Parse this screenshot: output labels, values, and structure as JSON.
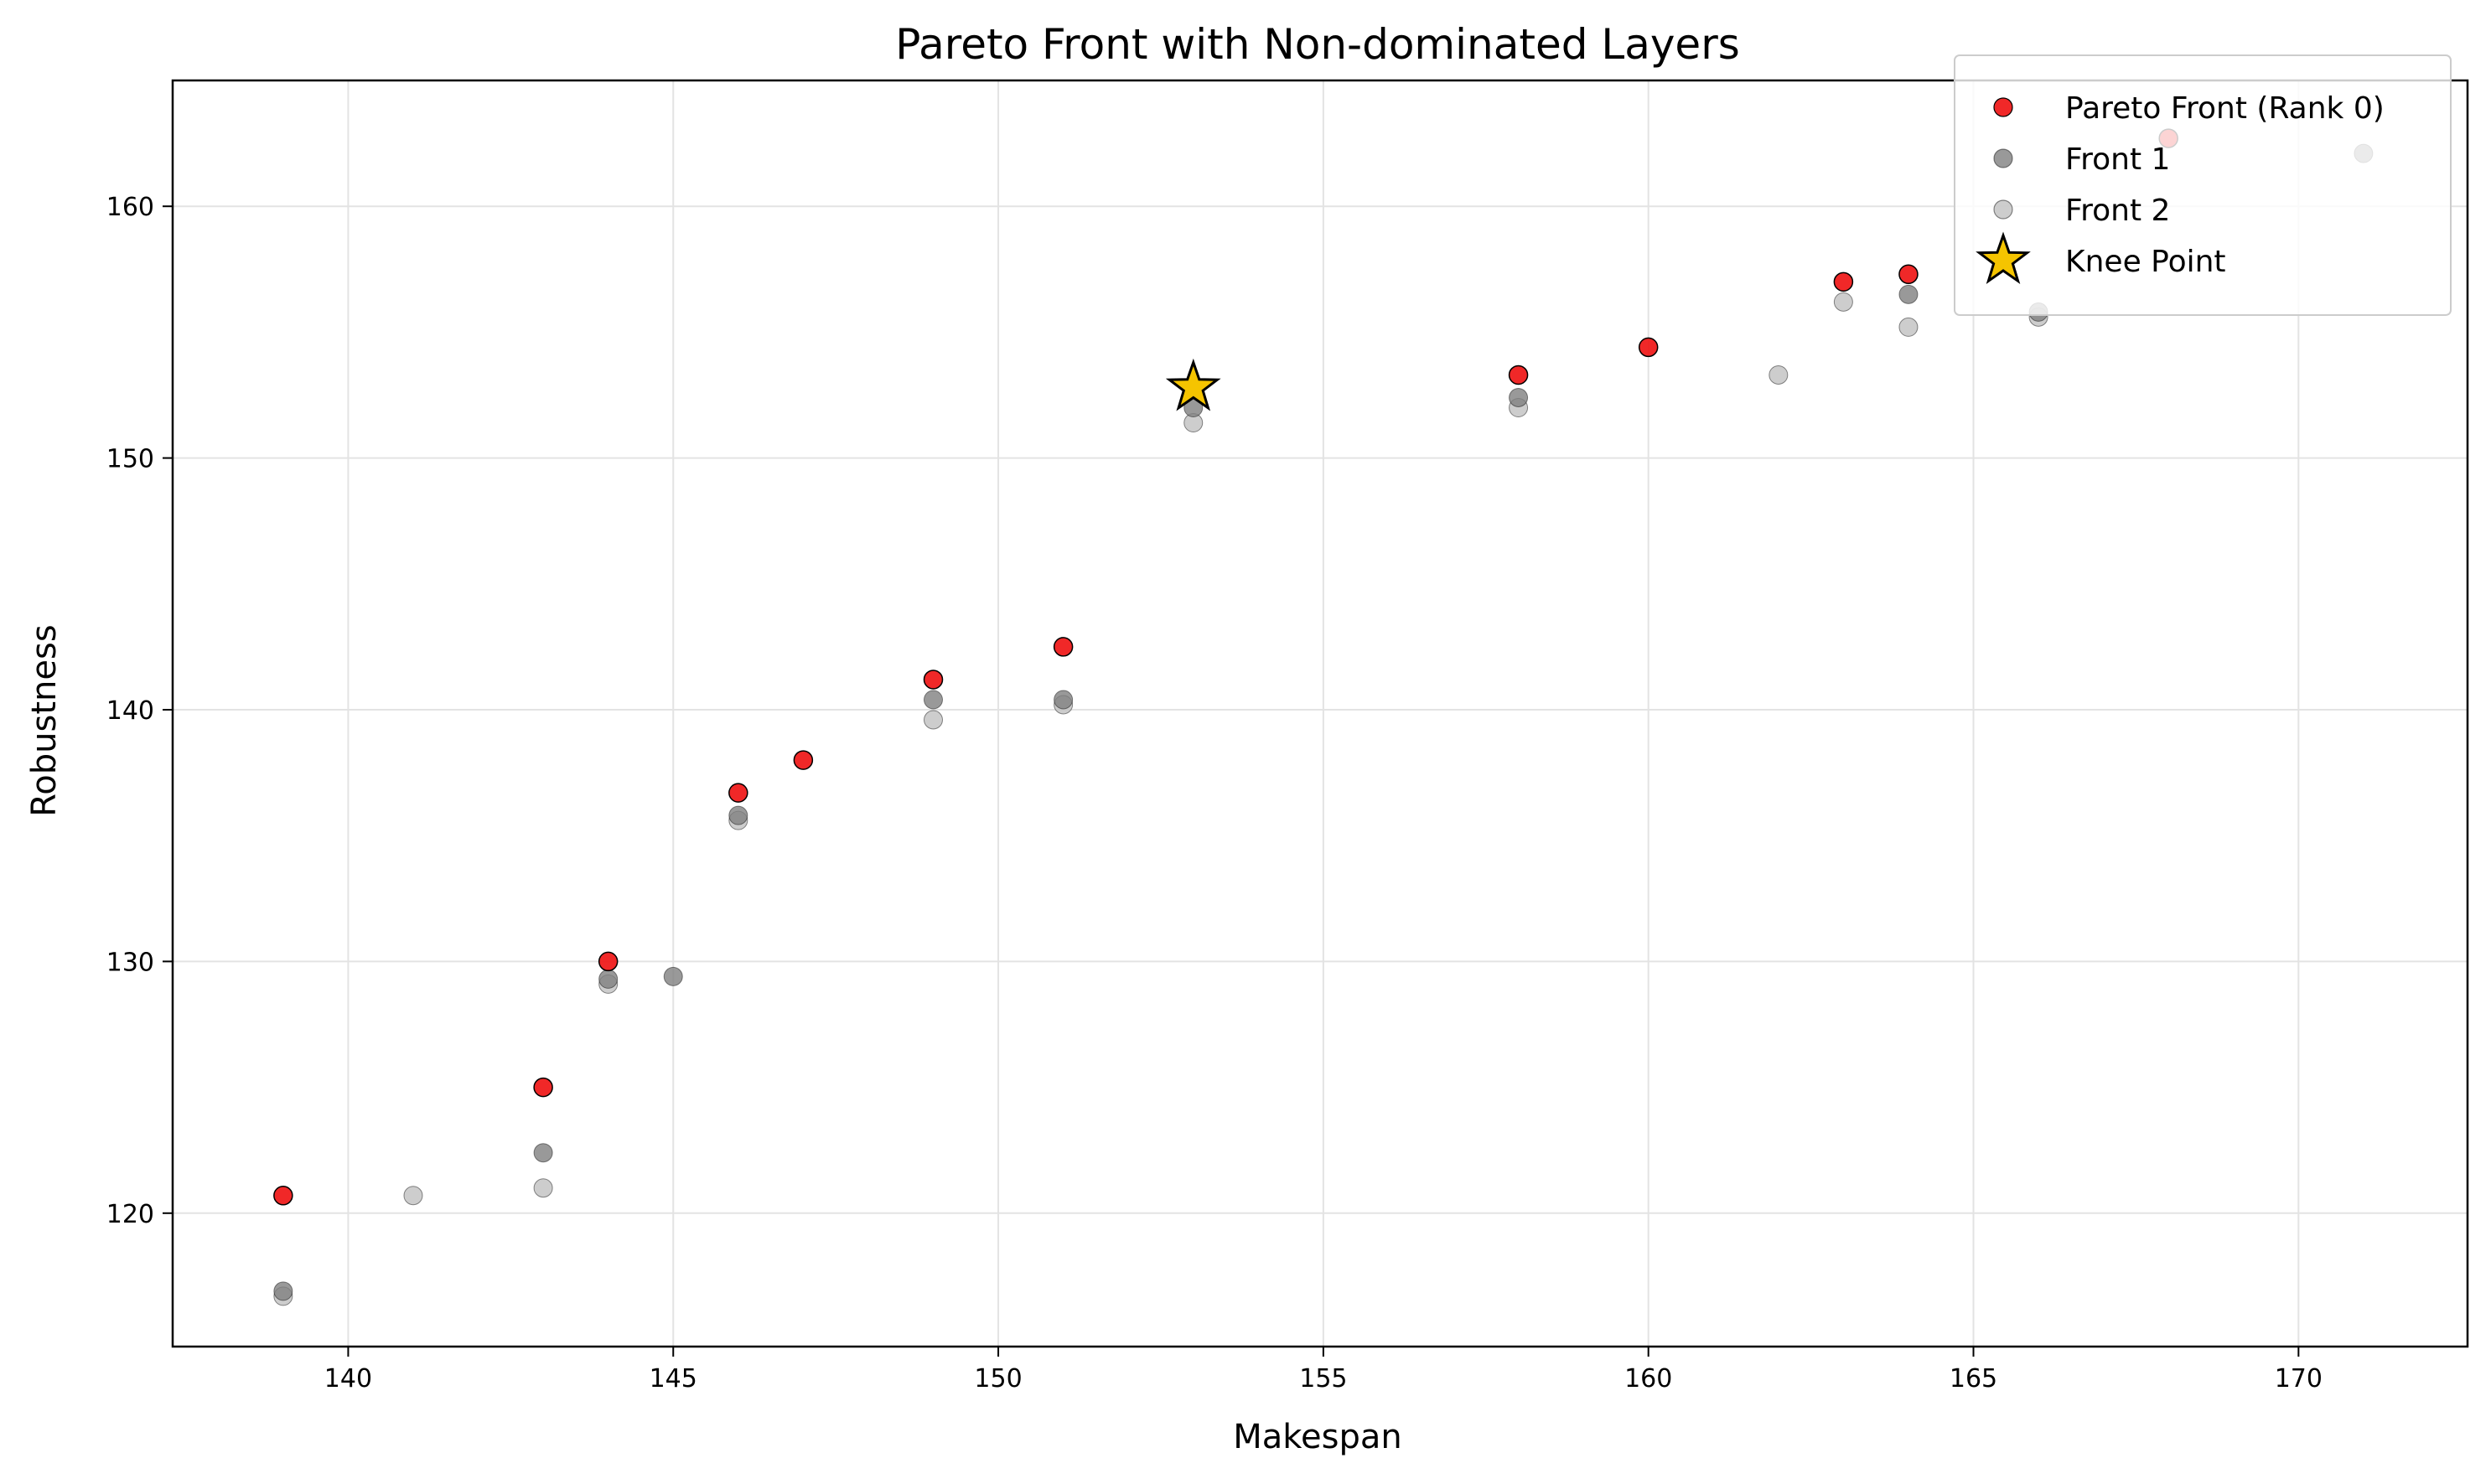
{
  "chart_data": {
    "type": "scatter",
    "title": "Pareto Front with Non-dominated Layers",
    "xlabel": "Makespan",
    "ylabel": "Robustness",
    "xlim": [
      137.3,
      172.6
    ],
    "ylim": [
      114.7,
      165.0
    ],
    "xticks": [
      140,
      145,
      150,
      155,
      160,
      165,
      170
    ],
    "yticks": [
      120,
      130,
      140,
      150,
      160
    ],
    "grid": true,
    "legend_position": "top-right",
    "series": [
      {
        "name": "Pareto Front (Rank 0)",
        "color": "#ee1111",
        "marker": "circle",
        "points": [
          [
            139,
            120.7
          ],
          [
            143,
            125.0
          ],
          [
            144,
            130.0
          ],
          [
            146,
            136.7
          ],
          [
            147,
            138.0
          ],
          [
            149,
            141.2
          ],
          [
            151,
            142.5
          ],
          [
            158,
            153.3
          ],
          [
            160,
            154.4
          ],
          [
            163,
            157.0
          ],
          [
            164,
            157.3
          ],
          [
            168,
            162.7
          ]
        ]
      },
      {
        "name": "Front 1",
        "color": "#7f7f7f",
        "marker": "circle",
        "points": [
          [
            139,
            116.9
          ],
          [
            143,
            122.4
          ],
          [
            144,
            129.3
          ],
          [
            145,
            129.4
          ],
          [
            146,
            135.8
          ],
          [
            149,
            140.4
          ],
          [
            151,
            140.4
          ],
          [
            153,
            152.0
          ],
          [
            158,
            152.4
          ],
          [
            164,
            156.5
          ],
          [
            166,
            155.8
          ],
          [
            171,
            162.1
          ]
        ]
      },
      {
        "name": "Front 2",
        "color": "#c0c0c0",
        "marker": "circle",
        "points": [
          [
            139,
            116.7
          ],
          [
            141,
            120.7
          ],
          [
            143,
            121.0
          ],
          [
            144,
            129.1
          ],
          [
            146,
            135.6
          ],
          [
            149,
            139.6
          ],
          [
            151,
            140.2
          ],
          [
            153,
            151.4
          ],
          [
            158,
            152.0
          ],
          [
            162,
            153.3
          ],
          [
            163,
            156.2
          ],
          [
            164,
            155.2
          ],
          [
            166,
            155.6
          ]
        ]
      },
      {
        "name": "Knee Point",
        "color": "#f5c400",
        "marker": "star",
        "points": [
          [
            153,
            152.8
          ]
        ]
      }
    ]
  }
}
